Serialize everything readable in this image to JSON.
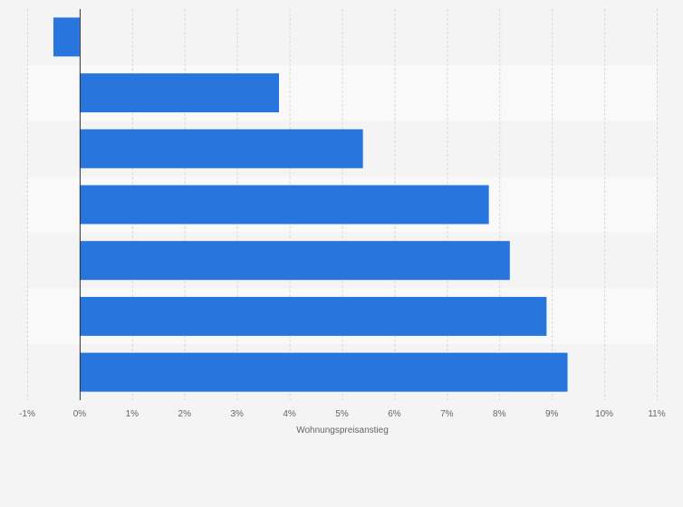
{
  "chart_data": {
    "type": "bar",
    "orientation": "horizontal",
    "xlabel": "Wohnungspreisanstieg",
    "ylabel": "",
    "categories": [
      "",
      "",
      "",
      "",
      "",
      "",
      ""
    ],
    "values": [
      -0.5,
      3.8,
      5.4,
      7.8,
      8.2,
      8.9,
      9.3
    ],
    "xlim": [
      -1,
      11
    ],
    "x_ticks": [
      "-1%",
      "0%",
      "1%",
      "2%",
      "3%",
      "4%",
      "5%",
      "6%",
      "7%",
      "8%",
      "9%",
      "10%",
      "11%"
    ],
    "grid": true,
    "bar_color": "#2876dd",
    "background_color": "#f4f4f4"
  }
}
